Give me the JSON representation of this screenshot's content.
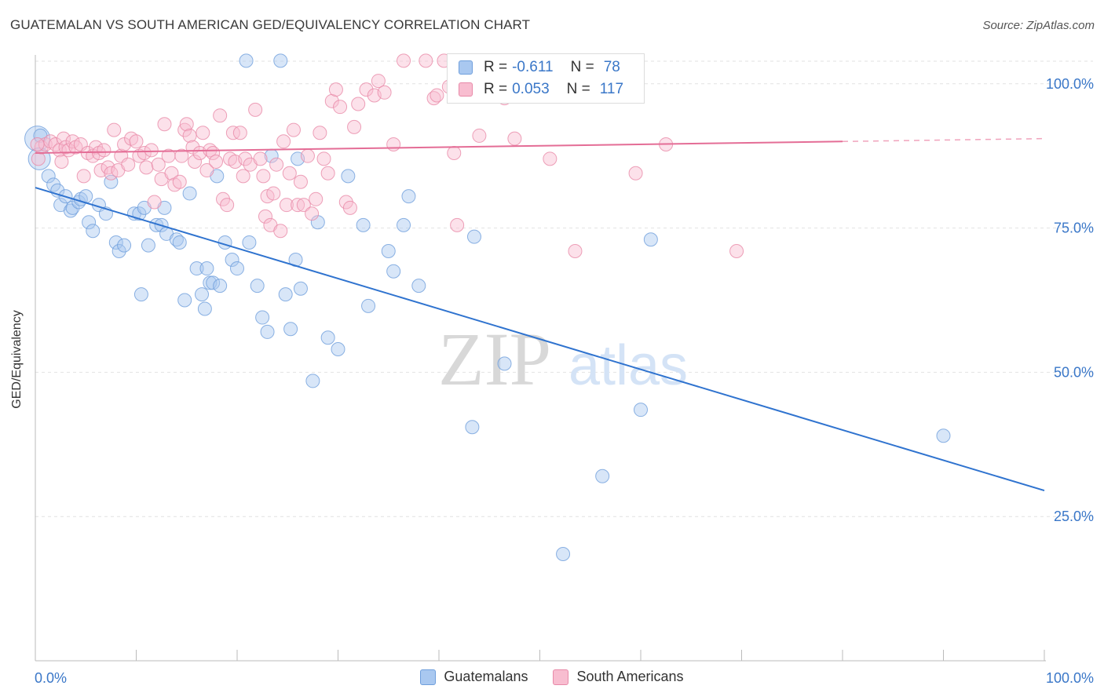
{
  "title": "GUATEMALAN VS SOUTH AMERICAN GED/EQUIVALENCY CORRELATION CHART",
  "source": "Source: ZipAtlas.com",
  "watermark": {
    "zip": "ZIP",
    "atlas": "atlas"
  },
  "legend": {
    "r_label": "R =",
    "n_label": "N =",
    "rows": [
      {
        "r": "-0.611",
        "n": "78",
        "color": "#a9c8f0",
        "border": "#6f9fdc"
      },
      {
        "r": "0.053",
        "n": "117",
        "color": "#f8bdd0",
        "border": "#e889a8"
      }
    ]
  },
  "bottom_legend": [
    "Guatemalans",
    "South Americans"
  ],
  "chart_data": {
    "type": "scatter",
    "title": "GUATEMALAN VS SOUTH AMERICAN GED/EQUIVALENCY CORRELATION CHART",
    "xlabel": "",
    "ylabel": "GED/Equivalency",
    "xlim": [
      0,
      100
    ],
    "ylim": [
      0,
      105
    ],
    "x_ticks": [
      "0.0%",
      "100.0%"
    ],
    "y_ticks": [
      {
        "v": 25,
        "label": "25.0%"
      },
      {
        "v": 50,
        "label": "50.0%"
      },
      {
        "v": 75,
        "label": "75.0%"
      },
      {
        "v": 100,
        "label": "100.0%"
      }
    ],
    "grid": true,
    "legend_position": "top-center",
    "series": [
      {
        "name": "Guatemalans",
        "color": "#6f9fdc",
        "fill": "#a9c8f0",
        "trend": {
          "x0": 0,
          "y0": 82,
          "x1": 100,
          "y1": 29.5,
          "dash_from": null
        },
        "points": [
          [
            0.2,
            90.5
          ],
          [
            0.4,
            87
          ],
          [
            1.3,
            84
          ],
          [
            1.8,
            82.5
          ],
          [
            2.2,
            81.5
          ],
          [
            2.5,
            79
          ],
          [
            3.0,
            80.5
          ],
          [
            3.5,
            78
          ],
          [
            3.7,
            78.5
          ],
          [
            4.3,
            79.5
          ],
          [
            4.5,
            80
          ],
          [
            5.0,
            80.5
          ],
          [
            5.3,
            76
          ],
          [
            5.7,
            74.5
          ],
          [
            6.3,
            79
          ],
          [
            7.0,
            77.5
          ],
          [
            7.5,
            83
          ],
          [
            8.0,
            72.5
          ],
          [
            8.3,
            71
          ],
          [
            8.8,
            72
          ],
          [
            9.8,
            77.5
          ],
          [
            10.3,
            77.5
          ],
          [
            10.8,
            78.5
          ],
          [
            10.5,
            63.5
          ],
          [
            11.2,
            72
          ],
          [
            12.0,
            75.5
          ],
          [
            12.5,
            75.5
          ],
          [
            12.8,
            78.5
          ],
          [
            13.0,
            74
          ],
          [
            14.0,
            73
          ],
          [
            14.3,
            72.5
          ],
          [
            14.8,
            62.5
          ],
          [
            15.3,
            81
          ],
          [
            16.0,
            68
          ],
          [
            16.5,
            63.5
          ],
          [
            16.8,
            61
          ],
          [
            17.0,
            68
          ],
          [
            17.3,
            65.5
          ],
          [
            17.6,
            65.5
          ],
          [
            18.3,
            65
          ],
          [
            18.8,
            72.5
          ],
          [
            18.0,
            84
          ],
          [
            19.5,
            69.5
          ],
          [
            20.0,
            68
          ],
          [
            20.9,
            104
          ],
          [
            21.2,
            72.5
          ],
          [
            22.0,
            65
          ],
          [
            22.5,
            59.5
          ],
          [
            23.0,
            57
          ],
          [
            23.4,
            87.5
          ],
          [
            24.3,
            104
          ],
          [
            24.8,
            63.5
          ],
          [
            25.3,
            57.5
          ],
          [
            25.8,
            69.5
          ],
          [
            26.3,
            64.5
          ],
          [
            26.0,
            87
          ],
          [
            27.5,
            48.5
          ],
          [
            28.0,
            76
          ],
          [
            29.0,
            56
          ],
          [
            30.0,
            54
          ],
          [
            31.0,
            84
          ],
          [
            32.5,
            75.5
          ],
          [
            33.0,
            61.5
          ],
          [
            35.0,
            71
          ],
          [
            35.5,
            67.5
          ],
          [
            36.5,
            75.5
          ],
          [
            37.0,
            80.5
          ],
          [
            38.0,
            65
          ],
          [
            43.5,
            73.5
          ],
          [
            43.3,
            40.5
          ],
          [
            46.5,
            51.5
          ],
          [
            52.3,
            18.5
          ],
          [
            56.2,
            32
          ],
          [
            60.0,
            43.5
          ],
          [
            61.0,
            73
          ],
          [
            90.0,
            39
          ],
          [
            0.5,
            91
          ]
        ],
        "sizes": {
          "0": 16,
          "1": 14
        }
      },
      {
        "name": "South Americans",
        "color": "#e889a8",
        "fill": "#f8bdd0",
        "trend": {
          "x0": 0,
          "y0": 88,
          "x1": 80,
          "y1": 90,
          "dash_to": 100
        },
        "points": [
          [
            0.3,
            87
          ],
          [
            0.6,
            89
          ],
          [
            1.0,
            89.5
          ],
          [
            1.5,
            90
          ],
          [
            2.0,
            89.5
          ],
          [
            2.4,
            88.5
          ],
          [
            2.8,
            90.5
          ],
          [
            3.0,
            89
          ],
          [
            3.3,
            88.5
          ],
          [
            3.7,
            90
          ],
          [
            4.0,
            89
          ],
          [
            4.5,
            89.5
          ],
          [
            4.8,
            84
          ],
          [
            5.2,
            88
          ],
          [
            5.7,
            87.5
          ],
          [
            6.0,
            89
          ],
          [
            6.3,
            88
          ],
          [
            6.5,
            85
          ],
          [
            6.8,
            88.5
          ],
          [
            7.2,
            85.5
          ],
          [
            7.5,
            84.5
          ],
          [
            7.8,
            92
          ],
          [
            8.2,
            85
          ],
          [
            8.5,
            87.5
          ],
          [
            8.8,
            89.5
          ],
          [
            9.2,
            86
          ],
          [
            9.5,
            90.5
          ],
          [
            10.0,
            90
          ],
          [
            10.3,
            87.5
          ],
          [
            10.8,
            88
          ],
          [
            11.0,
            85.5
          ],
          [
            11.5,
            88.5
          ],
          [
            11.8,
            79.5
          ],
          [
            12.2,
            86
          ],
          [
            12.5,
            83.5
          ],
          [
            12.8,
            93
          ],
          [
            13.2,
            87.5
          ],
          [
            13.5,
            84.5
          ],
          [
            13.8,
            82.5
          ],
          [
            14.3,
            83
          ],
          [
            14.5,
            87.5
          ],
          [
            14.8,
            92
          ],
          [
            15.0,
            93
          ],
          [
            15.3,
            91
          ],
          [
            15.6,
            89
          ],
          [
            15.8,
            86.5
          ],
          [
            16.3,
            88
          ],
          [
            16.6,
            91.5
          ],
          [
            17.0,
            85
          ],
          [
            17.3,
            88.5
          ],
          [
            17.6,
            88
          ],
          [
            17.9,
            86.5
          ],
          [
            18.3,
            94.5
          ],
          [
            18.6,
            80
          ],
          [
            19.0,
            79
          ],
          [
            19.3,
            87
          ],
          [
            19.6,
            91.5
          ],
          [
            19.8,
            86.5
          ],
          [
            20.3,
            91.5
          ],
          [
            20.6,
            84
          ],
          [
            20.8,
            87
          ],
          [
            21.3,
            86
          ],
          [
            21.8,
            95.5
          ],
          [
            22.3,
            87
          ],
          [
            22.6,
            84
          ],
          [
            22.8,
            77
          ],
          [
            23.0,
            80.5
          ],
          [
            23.3,
            75.5
          ],
          [
            23.6,
            81
          ],
          [
            23.9,
            86
          ],
          [
            24.3,
            74.5
          ],
          [
            24.6,
            90
          ],
          [
            24.9,
            79
          ],
          [
            25.2,
            84.5
          ],
          [
            25.6,
            92
          ],
          [
            26.0,
            79
          ],
          [
            26.3,
            83
          ],
          [
            26.6,
            79
          ],
          [
            27.0,
            87.5
          ],
          [
            27.4,
            77.5
          ],
          [
            27.8,
            80
          ],
          [
            28.2,
            91.5
          ],
          [
            28.6,
            87
          ],
          [
            29.0,
            84.5
          ],
          [
            29.4,
            97
          ],
          [
            29.8,
            99
          ],
          [
            30.2,
            96
          ],
          [
            30.8,
            79.5
          ],
          [
            31.2,
            78.5
          ],
          [
            31.6,
            92.5
          ],
          [
            32.0,
            96.5
          ],
          [
            32.8,
            99
          ],
          [
            33.6,
            98
          ],
          [
            34.0,
            100.5
          ],
          [
            34.6,
            98.5
          ],
          [
            35.5,
            89.5
          ],
          [
            36.5,
            104
          ],
          [
            38.7,
            104
          ],
          [
            39.5,
            97.5
          ],
          [
            39.8,
            98
          ],
          [
            40.5,
            104
          ],
          [
            41.0,
            99.5
          ],
          [
            41.8,
            75.5
          ],
          [
            41.5,
            88
          ],
          [
            42.6,
            98.5
          ],
          [
            43.1,
            98
          ],
          [
            44.0,
            91
          ],
          [
            45.0,
            103.5
          ],
          [
            46.5,
            97.5
          ],
          [
            47.5,
            90.5
          ],
          [
            51.0,
            87
          ],
          [
            53.5,
            71
          ],
          [
            59.5,
            84.5
          ],
          [
            62.5,
            89.5
          ],
          [
            69.5,
            71
          ],
          [
            0.2,
            89.5
          ],
          [
            2.6,
            86.5
          ]
        ],
        "sizes": {}
      }
    ]
  }
}
